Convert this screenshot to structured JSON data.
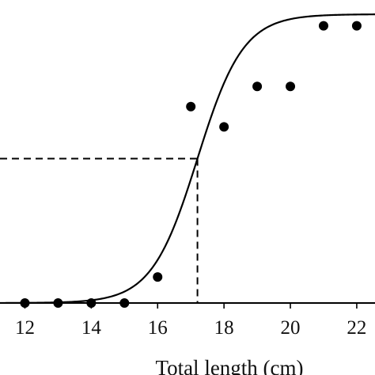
{
  "chart_data": {
    "type": "scatter",
    "xlabel": "Total length (cm)",
    "ylabel": "",
    "title": "",
    "xlim": [
      11.25,
      22.55
    ],
    "ylim": [
      0,
      1
    ],
    "x_ticks": [
      "12",
      "14",
      "16",
      "18",
      "20",
      "22"
    ],
    "series": [
      {
        "kind": "points",
        "x": [
          12,
          13,
          14,
          15,
          16,
          17,
          18,
          19,
          20,
          21,
          22
        ],
        "y": [
          0.0,
          0.0,
          0.0,
          0.0,
          0.09,
          0.68,
          0.61,
          0.75,
          0.75,
          0.96,
          0.96
        ]
      },
      {
        "kind": "logistic-fit",
        "midpoint": 17.2,
        "slope": 1.45,
        "y_at_midpoint": 0.5
      }
    ],
    "reference_lines": {
      "x": 17.2,
      "y": 0.5
    },
    "grid": false,
    "legend": "none"
  }
}
